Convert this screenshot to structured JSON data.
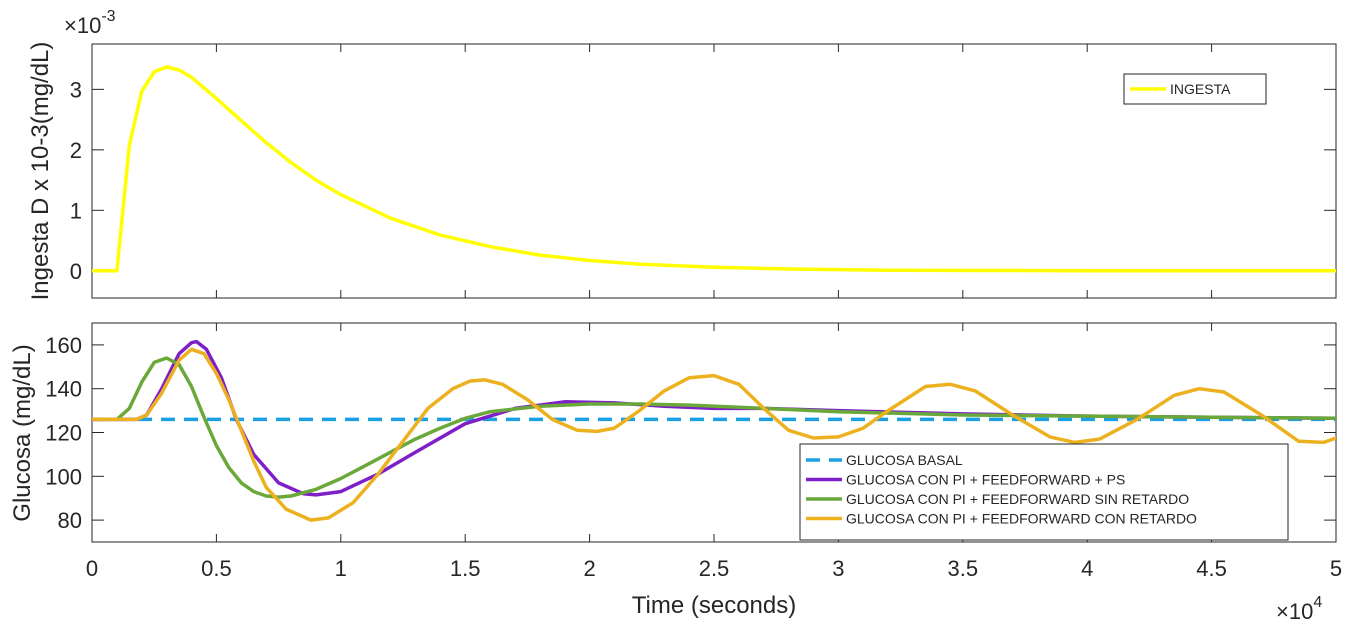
{
  "chart_data": [
    {
      "type": "line",
      "xlabel": "",
      "ylabel": "Ingesta D x 10-3(mg/dL)",
      "y_multiplier": "×10^-3",
      "y_multiplier_base": "×10",
      "y_multiplier_exp": "-3",
      "xlim": [
        0,
        50000
      ],
      "ylim": [
        -0.45,
        3.75
      ],
      "yticks": [
        0,
        1,
        2,
        3
      ],
      "ytick_labels": [
        "0",
        "1",
        "2",
        "3"
      ],
      "grid": false,
      "legend_position": "top-right",
      "series": [
        {
          "name": "INGESTA",
          "color": "#FFFF00",
          "style": "solid",
          "x": [
            -1000,
            0,
            1000,
            1500,
            2000,
            2500,
            3000,
            3500,
            4000,
            5000,
            6000,
            7000,
            8000,
            9000,
            10000,
            12000,
            14000,
            16000,
            18000,
            20000,
            22000,
            25000,
            28000,
            32000,
            36000,
            40000,
            45000,
            50000
          ],
          "y": [
            0,
            0,
            0,
            2.07,
            2.97,
            3.29,
            3.37,
            3.32,
            3.2,
            2.85,
            2.48,
            2.12,
            1.79,
            1.5,
            1.26,
            0.87,
            0.59,
            0.4,
            0.26,
            0.17,
            0.11,
            0.06,
            0.03,
            0.01,
            0.005,
            0.002,
            0.001,
            0
          ]
        }
      ]
    },
    {
      "type": "line",
      "xlabel": "Time (seconds)",
      "ylabel": "Glucosa (mg/dL)",
      "x_multiplier": "×10^4",
      "x_multiplier_base": "×10",
      "x_multiplier_exp": "4",
      "xlim": [
        0,
        50000
      ],
      "ylim": [
        70,
        170
      ],
      "xticks": [
        0,
        5000,
        10000,
        15000,
        20000,
        25000,
        30000,
        35000,
        40000,
        45000,
        50000
      ],
      "xtick_labels": [
        "0",
        "0.5",
        "1",
        "1.5",
        "2",
        "2.5",
        "3",
        "3.5",
        "4",
        "4.5",
        "5"
      ],
      "yticks": [
        80,
        100,
        120,
        140,
        160
      ],
      "ytick_labels": [
        "80",
        "100",
        "120",
        "140",
        "160"
      ],
      "grid": false,
      "legend_position": "bottom-right",
      "series": [
        {
          "name": "GLUCOSA BASAL",
          "color": "#1BA1E2",
          "style": "dashed",
          "x": [
            0,
            50000
          ],
          "y": [
            126,
            126
          ]
        },
        {
          "name": "GLUCOSA CON PI + FEEDFORWARD + PS",
          "color": "#7E1FC7",
          "style": "solid",
          "x": [
            -1000,
            1800,
            2200,
            2800,
            3500,
            4000,
            4200,
            4600,
            5200,
            5800,
            6500,
            7500,
            8500,
            9000,
            10000,
            11500,
            13000,
            15000,
            17000,
            19000,
            21000,
            23000,
            25000,
            27000,
            30000,
            35000,
            40000,
            45000,
            50000
          ],
          "y": [
            126,
            126,
            128,
            140,
            156,
            161,
            161.5,
            158,
            145,
            126,
            110,
            97,
            92,
            91.5,
            93,
            101,
            111,
            124,
            131,
            134,
            133.5,
            132,
            131,
            131,
            130,
            128.5,
            127.5,
            127,
            126.5
          ]
        },
        {
          "name": "GLUCOSA CON PI + FEEDFORWARD SIN RETARDO",
          "color": "#6AA83A",
          "style": "solid",
          "x": [
            -1000,
            1000,
            1500,
            2000,
            2500,
            3000,
            3500,
            4000,
            4500,
            5000,
            5500,
            6000,
            6500,
            7000,
            7500,
            8000,
            9000,
            10000,
            11000,
            12000,
            13000,
            14000,
            15000,
            16000,
            18000,
            20000,
            22000,
            24000,
            26000,
            28000,
            30000,
            35000,
            40000,
            45000,
            50000
          ],
          "y": [
            126,
            126,
            131,
            143,
            152,
            154,
            151,
            141,
            127,
            114,
            104,
            97,
            93,
            91,
            90.5,
            91,
            94,
            99,
            105,
            111,
            117,
            122,
            126.5,
            129.5,
            132,
            133,
            133,
            132.5,
            131.5,
            130.5,
            129.5,
            128,
            127.5,
            127,
            126.5
          ]
        },
        {
          "name": "GLUCOSA CON PI + FEEDFORWARD CON RETARDO",
          "color": "#EDB120",
          "style": "solid",
          "x": [
            -1000,
            1800,
            2200,
            2800,
            3500,
            4000,
            4500,
            5000,
            5500,
            6000,
            6500,
            7000,
            7800,
            8800,
            9500,
            10500,
            11500,
            12500,
            13500,
            14500,
            15200,
            15800,
            16500,
            17500,
            18500,
            19500,
            20300,
            21000,
            22000,
            23000,
            24000,
            25000,
            26000,
            27000,
            28000,
            29000,
            30000,
            31000,
            32000,
            33500,
            34500,
            35500,
            37000,
            38500,
            39500,
            40500,
            42000,
            43500,
            44500,
            45500,
            47000,
            48500,
            49500,
            50000
          ],
          "y": [
            126,
            126,
            128,
            138,
            153,
            158,
            156,
            147,
            135,
            121,
            107,
            95,
            85,
            80,
            81,
            88,
            101,
            116,
            131,
            140,
            143.5,
            144,
            142,
            135,
            126,
            121,
            120.5,
            122,
            130,
            139,
            145,
            146,
            142,
            131,
            121,
            117.5,
            118,
            122,
            130,
            141,
            142,
            139,
            128,
            118,
            115.5,
            117,
            126,
            137,
            140,
            138.5,
            128,
            116,
            115.5,
            117.5
          ]
        }
      ]
    }
  ]
}
